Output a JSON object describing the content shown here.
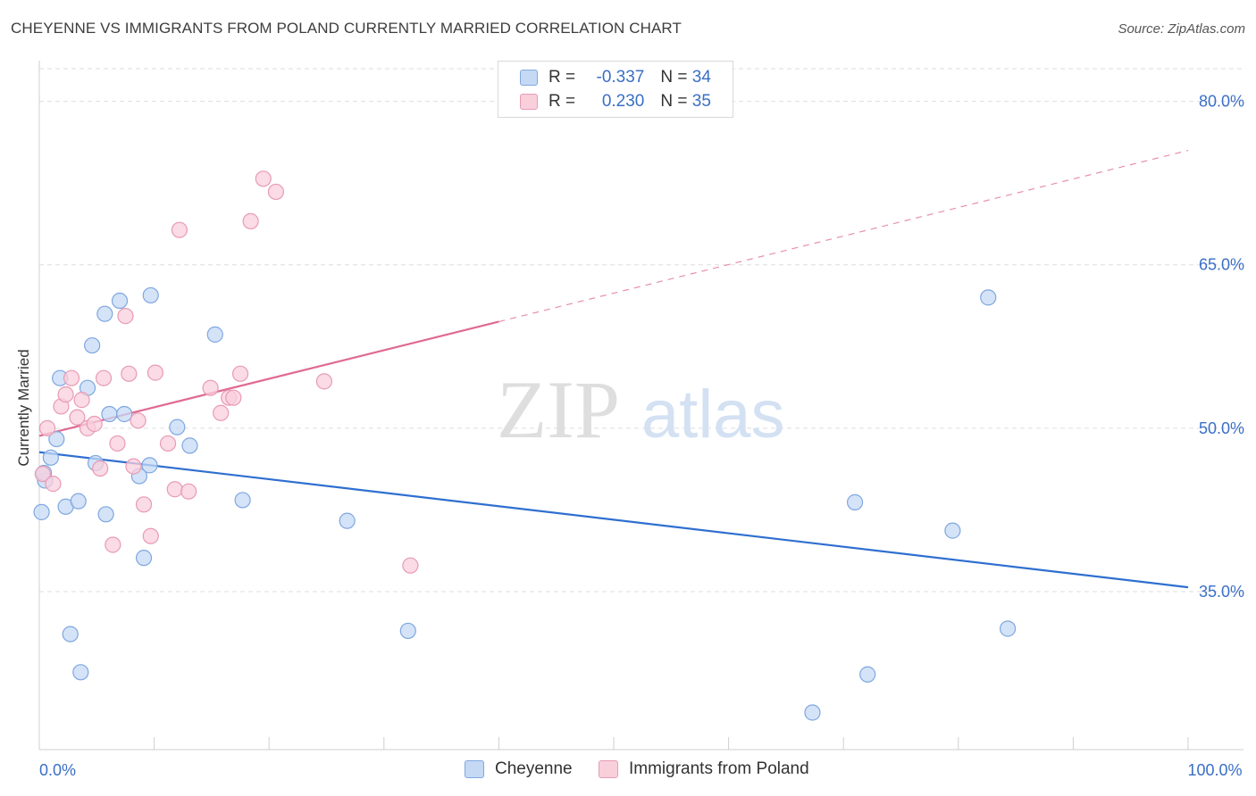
{
  "title": "CHEYENNE VS IMMIGRANTS FROM POLAND CURRENTLY MARRIED CORRELATION CHART",
  "source": "Source: ZipAtlas.com",
  "watermark": {
    "zip": "ZIP",
    "atlas": "atlas"
  },
  "legend_top": {
    "rows": [
      {
        "r_label": "R = ",
        "r_value": "-0.337",
        "n_label": "N = ",
        "n_value": "34"
      },
      {
        "r_label": "R = ",
        "r_value": "0.230",
        "n_label": "N = ",
        "n_value": "35"
      }
    ]
  },
  "legend_bottom": {
    "items": [
      "Cheyenne",
      "Immigrants from Poland"
    ]
  },
  "colors": {
    "blue_fill": "#c5d9f5",
    "blue_stroke": "#7ea7e0",
    "blue_line": "#2f6fd0",
    "pink_fill": "#f9cfdc",
    "pink_stroke": "#e79bb4",
    "pink_line": "#e06a93",
    "axis_label": "#3a6fc6",
    "grid": "#dddddd"
  },
  "chart_data": {
    "type": "scatter",
    "title": "CHEYENNE VS IMMIGRANTS FROM POLAND CURRENTLY MARRIED CORRELATION CHART",
    "xlabel": "",
    "ylabel": "Currently Married",
    "xlim": [
      0,
      100
    ],
    "ylim": [
      20.5,
      83
    ],
    "x_tick_labels": [
      {
        "value": 0,
        "label": "0.0%"
      },
      {
        "value": 100,
        "label": "100.0%"
      }
    ],
    "y_ticks": [
      {
        "value": 80,
        "label": "80.0%"
      },
      {
        "value": 65,
        "label": "65.0%"
      },
      {
        "value": 50,
        "label": "50.0%"
      },
      {
        "value": 35,
        "label": "35.0%"
      }
    ],
    "series": [
      {
        "name": "Cheyenne",
        "r": -0.337,
        "n": 34,
        "trend": {
          "x": [
            0,
            100
          ],
          "y": [
            47.8,
            35.4
          ],
          "dashed_from": null
        },
        "points": [
          {
            "x": 0.2,
            "y": 42.3
          },
          {
            "x": 0.5,
            "y": 45.2
          },
          {
            "x": 1.0,
            "y": 47.3
          },
          {
            "x": 1.5,
            "y": 49.0
          },
          {
            "x": 1.8,
            "y": 54.6
          },
          {
            "x": 2.3,
            "y": 42.8
          },
          {
            "x": 2.7,
            "y": 31.1
          },
          {
            "x": 3.4,
            "y": 43.3
          },
          {
            "x": 3.6,
            "y": 27.6
          },
          {
            "x": 4.2,
            "y": 53.7
          },
          {
            "x": 4.6,
            "y": 57.6
          },
          {
            "x": 4.9,
            "y": 46.8
          },
          {
            "x": 5.7,
            "y": 60.5
          },
          {
            "x": 5.8,
            "y": 42.1
          },
          {
            "x": 6.1,
            "y": 51.3
          },
          {
            "x": 7.0,
            "y": 61.7
          },
          {
            "x": 7.4,
            "y": 51.3
          },
          {
            "x": 8.7,
            "y": 45.6
          },
          {
            "x": 9.1,
            "y": 38.1
          },
          {
            "x": 9.6,
            "y": 46.6
          },
          {
            "x": 9.7,
            "y": 62.2
          },
          {
            "x": 12.0,
            "y": 50.1
          },
          {
            "x": 13.1,
            "y": 48.4
          },
          {
            "x": 15.3,
            "y": 58.6
          },
          {
            "x": 17.7,
            "y": 43.4
          },
          {
            "x": 26.8,
            "y": 41.5
          },
          {
            "x": 32.1,
            "y": 31.4
          },
          {
            "x": 67.3,
            "y": 23.9
          },
          {
            "x": 71.0,
            "y": 43.2
          },
          {
            "x": 72.1,
            "y": 27.4
          },
          {
            "x": 79.5,
            "y": 40.6
          },
          {
            "x": 82.6,
            "y": 62.0
          },
          {
            "x": 84.3,
            "y": 31.6
          },
          {
            "x": 0.4,
            "y": 45.9
          }
        ]
      },
      {
        "name": "Immigrants from Poland",
        "r": 0.23,
        "n": 35,
        "trend": {
          "x": [
            0,
            100
          ],
          "y": [
            49.3,
            75.5
          ],
          "dashed_from": 40
        },
        "points": [
          {
            "x": 0.3,
            "y": 45.8
          },
          {
            "x": 0.7,
            "y": 50.0
          },
          {
            "x": 1.2,
            "y": 44.9
          },
          {
            "x": 1.9,
            "y": 52.0
          },
          {
            "x": 2.3,
            "y": 53.1
          },
          {
            "x": 2.8,
            "y": 54.6
          },
          {
            "x": 3.3,
            "y": 51.0
          },
          {
            "x": 3.7,
            "y": 52.6
          },
          {
            "x": 4.2,
            "y": 50.0
          },
          {
            "x": 4.8,
            "y": 50.4
          },
          {
            "x": 5.3,
            "y": 46.3
          },
          {
            "x": 5.6,
            "y": 54.6
          },
          {
            "x": 6.4,
            "y": 39.3
          },
          {
            "x": 6.8,
            "y": 48.6
          },
          {
            "x": 7.5,
            "y": 60.3
          },
          {
            "x": 7.8,
            "y": 55.0
          },
          {
            "x": 8.2,
            "y": 46.5
          },
          {
            "x": 8.6,
            "y": 50.7
          },
          {
            "x": 9.1,
            "y": 43.0
          },
          {
            "x": 9.7,
            "y": 40.1
          },
          {
            "x": 10.1,
            "y": 55.1
          },
          {
            "x": 11.2,
            "y": 48.6
          },
          {
            "x": 11.8,
            "y": 44.4
          },
          {
            "x": 12.2,
            "y": 68.2
          },
          {
            "x": 13.0,
            "y": 44.2
          },
          {
            "x": 14.9,
            "y": 53.7
          },
          {
            "x": 15.8,
            "y": 51.4
          },
          {
            "x": 16.5,
            "y": 52.8
          },
          {
            "x": 16.9,
            "y": 52.8
          },
          {
            "x": 17.5,
            "y": 55.0
          },
          {
            "x": 18.4,
            "y": 69.0
          },
          {
            "x": 19.5,
            "y": 72.9
          },
          {
            "x": 20.6,
            "y": 71.7
          },
          {
            "x": 24.8,
            "y": 54.3
          },
          {
            "x": 32.3,
            "y": 37.4
          }
        ]
      }
    ]
  }
}
